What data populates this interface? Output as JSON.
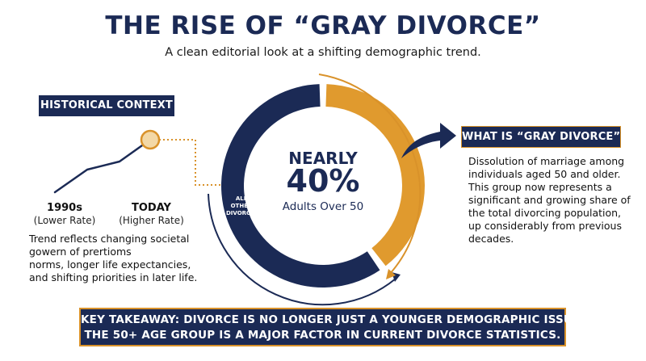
{
  "header": {
    "title": "THE RISE OF “GRAY DIVORCE”",
    "subtitle": "A clean editorial look at a shifting demographic trend."
  },
  "historical": {
    "tag": "HISTORICAL CONTEXT",
    "start_label": "1990s",
    "start_sub": "(Lower Rate)",
    "end_label": "TODAY",
    "end_sub": "(Higher Rate)",
    "trend_lines": [
      "Trend reflects changing societal",
      "gowern of prertioms",
      "norms, longer life expectancies,",
      "and shifting priorities in later life."
    ]
  },
  "ring": {
    "headline": "NEARLY",
    "percent": "40%",
    "caption": "Adults Over 50",
    "share_over_50": 0.4,
    "other_label_lines": [
      "ALL",
      "OTHER",
      "DIVORCES"
    ]
  },
  "definition": {
    "tag": "WHAT IS “GRAY DIVORCE”?",
    "lines": [
      "Dissolution of marriage among",
      "individuals aged 50 and older.",
      "This group now represents a",
      "significant and growing share of",
      "the total divorcing population,",
      "up considerably from previous",
      "decades."
    ]
  },
  "takeaway": {
    "line1": "KEY TAKEAWAY: DIVORCE IS NO LONGER JUST A YOUNGER DEMOGRAPHIC ISSUE;",
    "line2": "THE 50+ AGE GROUP IS A MAJOR FACTOR IN CURRENT DIVORCE STATISTICS."
  },
  "colors": {
    "navy": "#1b2a55",
    "gold": "#d9922a",
    "light_gold": "#f3d8a6"
  }
}
